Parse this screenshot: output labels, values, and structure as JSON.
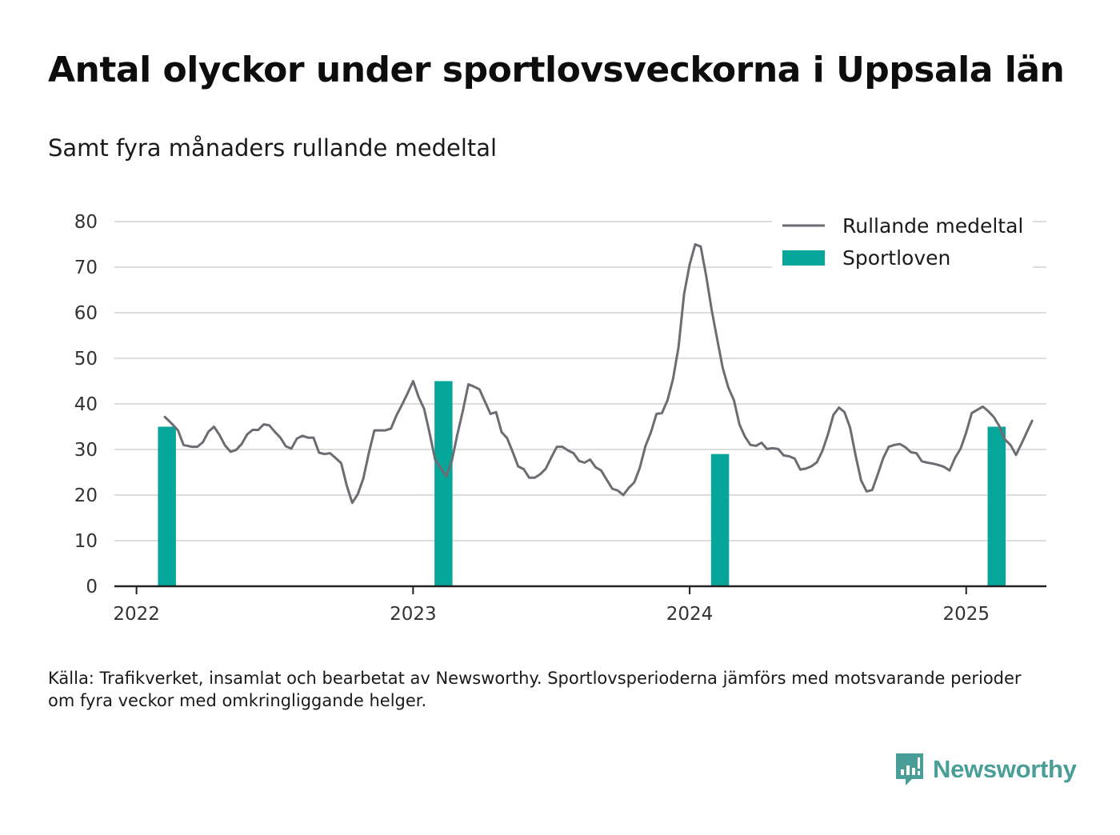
{
  "title": "Antal olyckor under sportlovsveckorna i Uppsala län",
  "subtitle": "Samt fyra månaders rullande medeltal",
  "note": "Källa: Trafikverket, insamlat och bearbetat av Newsworthy. Sportlovsperioderna jämförs med motsvarande perioder om fyra veckor med omkringliggande helger.",
  "logo": {
    "text": "Newsworthy",
    "icon": "newsworthy-logo-icon",
    "color": "#4a9e98"
  },
  "colors": {
    "bar": "#06a69a",
    "line": "#6c6c72",
    "grid": "#dddddd",
    "axis": "#222222"
  },
  "chart_data": {
    "type": "bar+line",
    "ylim": [
      0,
      80
    ],
    "xlim": [
      2021.92,
      2025.29
    ],
    "yticks": [
      0,
      10,
      20,
      30,
      40,
      50,
      60,
      70,
      80
    ],
    "xticks": [
      2022,
      2023,
      2024,
      2025
    ],
    "grid": true,
    "legend_position": "top-right",
    "legend": [
      {
        "label": "Rullande medeltal",
        "kind": "line"
      },
      {
        "label": "Sportloven",
        "kind": "bar"
      }
    ],
    "bars": {
      "name": "Sportloven",
      "x": [
        2022.11,
        2023.11,
        2024.11,
        2025.11
      ],
      "values": [
        35,
        45,
        29,
        35
      ],
      "width": 0.065
    },
    "line": {
      "name": "Rullande medeltal",
      "points": [
        [
          2022.1,
          37.3
        ],
        [
          2022.13,
          35.5
        ],
        [
          2022.15,
          34.2
        ],
        [
          2022.17,
          31
        ],
        [
          2022.2,
          30.6
        ],
        [
          2022.22,
          30.6
        ],
        [
          2022.24,
          31.6
        ],
        [
          2022.26,
          33.9
        ],
        [
          2022.28,
          35
        ],
        [
          2022.3,
          33.2
        ],
        [
          2022.32,
          30.9
        ],
        [
          2022.34,
          29.5
        ],
        [
          2022.36,
          29.9
        ],
        [
          2022.38,
          31.2
        ],
        [
          2022.4,
          33.3
        ],
        [
          2022.42,
          34.3
        ],
        [
          2022.44,
          34.3
        ],
        [
          2022.46,
          35.5
        ],
        [
          2022.48,
          35.3
        ],
        [
          2022.5,
          33.9
        ],
        [
          2022.52,
          32.6
        ],
        [
          2022.54,
          30.7
        ],
        [
          2022.56,
          30.2
        ],
        [
          2022.58,
          32.4
        ],
        [
          2022.6,
          33
        ],
        [
          2022.62,
          32.6
        ],
        [
          2022.64,
          32.6
        ],
        [
          2022.66,
          29.3
        ],
        [
          2022.68,
          29.0
        ],
        [
          2022.7,
          29.2
        ],
        [
          2022.72,
          28.1
        ],
        [
          2022.74,
          27.0
        ],
        [
          2022.76,
          22.1
        ],
        [
          2022.78,
          18.3
        ],
        [
          2022.8,
          20.2
        ],
        [
          2022.82,
          23.6
        ],
        [
          2022.84,
          29.2
        ],
        [
          2022.86,
          34.2
        ],
        [
          2022.88,
          34.2
        ],
        [
          2022.9,
          34.2
        ],
        [
          2022.92,
          34.6
        ],
        [
          2022.94,
          37.5
        ],
        [
          2022.96,
          39.8
        ],
        [
          2022.98,
          42.3
        ],
        [
          2023.0,
          45
        ],
        [
          2023.02,
          41.5
        ],
        [
          2023.04,
          38.9
        ],
        [
          2023.06,
          33.5
        ],
        [
          2023.08,
          27.7
        ],
        [
          2023.1,
          26
        ],
        [
          2023.12,
          24.1
        ],
        [
          2023.14,
          27.5
        ],
        [
          2023.16,
          33.3
        ],
        [
          2023.18,
          38.5
        ],
        [
          2023.2,
          44.3
        ],
        [
          2023.22,
          43.8
        ],
        [
          2023.24,
          43.2
        ],
        [
          2023.26,
          40.5
        ],
        [
          2023.28,
          37.8
        ],
        [
          2023.3,
          38.2
        ],
        [
          2023.32,
          33.8
        ],
        [
          2023.34,
          32.5
        ],
        [
          2023.36,
          29.5
        ],
        [
          2023.38,
          26.3
        ],
        [
          2023.4,
          25.7
        ],
        [
          2023.42,
          23.8
        ],
        [
          2023.44,
          23.8
        ],
        [
          2023.46,
          24.6
        ],
        [
          2023.48,
          25.8
        ],
        [
          2023.5,
          28.3
        ],
        [
          2023.52,
          30.6
        ],
        [
          2023.54,
          30.6
        ],
        [
          2023.56,
          29.8
        ],
        [
          2023.58,
          29.2
        ],
        [
          2023.6,
          27.5
        ],
        [
          2023.62,
          27.1
        ],
        [
          2023.64,
          27.8
        ],
        [
          2023.66,
          26.1
        ],
        [
          2023.68,
          25.4
        ],
        [
          2023.7,
          23.4
        ],
        [
          2023.72,
          21.4
        ],
        [
          2023.74,
          21
        ],
        [
          2023.76,
          20
        ],
        [
          2023.78,
          21.6
        ],
        [
          2023.8,
          22.8
        ],
        [
          2023.82,
          26
        ],
        [
          2023.84,
          30.7
        ],
        [
          2023.86,
          33.8
        ],
        [
          2023.88,
          37.8
        ],
        [
          2023.9,
          38
        ],
        [
          2023.92,
          40.8
        ],
        [
          2023.94,
          45.5
        ],
        [
          2023.96,
          52.5
        ],
        [
          2023.98,
          64.1
        ],
        [
          2024.0,
          70.6
        ],
        [
          2024.02,
          75
        ],
        [
          2024.04,
          74.5
        ],
        [
          2024.06,
          68
        ],
        [
          2024.08,
          60.5
        ],
        [
          2024.1,
          54.1
        ],
        [
          2024.12,
          47.8
        ],
        [
          2024.14,
          43.6
        ],
        [
          2024.16,
          40.8
        ],
        [
          2024.18,
          35.5
        ],
        [
          2024.2,
          32.8
        ],
        [
          2024.22,
          31
        ],
        [
          2024.24,
          30.8
        ],
        [
          2024.26,
          31.5
        ],
        [
          2024.28,
          30.1
        ],
        [
          2024.3,
          30.3
        ],
        [
          2024.32,
          30.1
        ],
        [
          2024.34,
          28.7
        ],
        [
          2024.36,
          28.5
        ],
        [
          2024.38,
          28
        ],
        [
          2024.4,
          25.6
        ],
        [
          2024.42,
          25.8
        ],
        [
          2024.44,
          26.3
        ],
        [
          2024.46,
          27.2
        ],
        [
          2024.48,
          29.7
        ],
        [
          2024.5,
          33.3
        ],
        [
          2024.52,
          37.6
        ],
        [
          2024.54,
          39.2
        ],
        [
          2024.56,
          38.2
        ],
        [
          2024.58,
          34.8
        ],
        [
          2024.6,
          28.7
        ],
        [
          2024.62,
          23.2
        ],
        [
          2024.64,
          20.8
        ],
        [
          2024.66,
          21.1
        ],
        [
          2024.68,
          24.5
        ],
        [
          2024.7,
          28.1
        ],
        [
          2024.72,
          30.6
        ],
        [
          2024.74,
          31
        ],
        [
          2024.76,
          31.2
        ],
        [
          2024.78,
          30.5
        ],
        [
          2024.8,
          29.4
        ],
        [
          2024.82,
          29.2
        ],
        [
          2024.84,
          27.4
        ],
        [
          2024.86,
          27.1
        ],
        [
          2024.88,
          26.9
        ],
        [
          2024.9,
          26.6
        ],
        [
          2024.92,
          26.2
        ],
        [
          2024.94,
          25.4
        ],
        [
          2024.96,
          28.2
        ],
        [
          2024.98,
          30.2
        ],
        [
          2025.0,
          33.7
        ],
        [
          2025.02,
          38
        ],
        [
          2025.04,
          38.7
        ],
        [
          2025.06,
          39.4
        ],
        [
          2025.08,
          38.4
        ],
        [
          2025.1,
          37.1
        ],
        [
          2025.12,
          35.1
        ],
        [
          2025.14,
          32.2
        ],
        [
          2025.16,
          31
        ],
        [
          2025.18,
          28.8
        ],
        [
          2025.2,
          31.3
        ],
        [
          2025.22,
          33.9
        ],
        [
          2025.24,
          36.5
        ]
      ]
    }
  }
}
